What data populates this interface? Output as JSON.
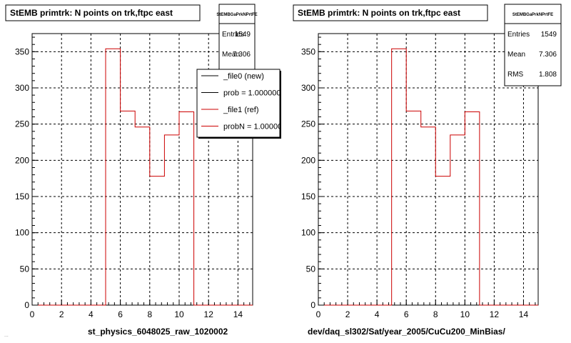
{
  "footer_text": "...",
  "colors": {
    "histogram": "#cc0000",
    "axis": "#000000",
    "grid": "#000000",
    "background": "#ffffff",
    "statsbox": "#ffffff"
  },
  "chart_data": [
    {
      "type": "bar",
      "title": "StEMB primtrk: N points on trk,ftpc east",
      "xlabel": "st_physics_6048025_raw_1020002",
      "ylabel": "",
      "xlim": [
        0,
        15
      ],
      "ylim": [
        0,
        375
      ],
      "grid": true,
      "xticks": [
        "0",
        "2",
        "4",
        "6",
        "8",
        "10",
        "12",
        "14"
      ],
      "yticks": [
        "0",
        "50",
        "100",
        "150",
        "200",
        "250",
        "300",
        "350"
      ],
      "bin_edges": [
        0,
        1,
        2,
        3,
        4,
        5,
        6,
        7,
        8,
        9,
        10,
        11,
        12,
        13,
        14,
        15
      ],
      "values": [
        0,
        0,
        0,
        0,
        0,
        354,
        268,
        246,
        178,
        235,
        267,
        0,
        0,
        0,
        0
      ],
      "stats": {
        "name": "StEMBGaPrkNPrtFE",
        "rows": [
          {
            "label": "Entries",
            "value": "1549"
          },
          {
            "label": "Mean",
            "value": "7.306"
          }
        ]
      },
      "legend": {
        "placement": "top-right",
        "entries": [
          {
            "label": "_file0 (new)",
            "color": "#000000"
          },
          {
            "label": "prob = 1.000000",
            "color": "#000000"
          },
          {
            "label": "_file1 (ref)",
            "color": "#cc0000"
          },
          {
            "label": "probN = 1.000000",
            "color": "#cc0000"
          }
        ]
      }
    },
    {
      "type": "bar",
      "title": "StEMB primtrk: N points on trk,ftpc east",
      "xlabel": "dev/daq_sl302/Sat/year_2005/CuCu200_MinBias/",
      "ylabel": "",
      "xlim": [
        0,
        15
      ],
      "ylim": [
        0,
        375
      ],
      "grid": true,
      "xticks": [
        "0",
        "2",
        "4",
        "6",
        "8",
        "10",
        "12",
        "14"
      ],
      "yticks": [
        "0",
        "50",
        "100",
        "150",
        "200",
        "250",
        "300",
        "350"
      ],
      "bin_edges": [
        0,
        1,
        2,
        3,
        4,
        5,
        6,
        7,
        8,
        9,
        10,
        11,
        12,
        13,
        14,
        15
      ],
      "values": [
        0,
        0,
        0,
        0,
        0,
        354,
        268,
        246,
        178,
        235,
        267,
        0,
        0,
        0,
        0
      ],
      "stats": {
        "name": "StEMBGaPrkNPrtFE",
        "rows": [
          {
            "label": "Entries",
            "value": "1549"
          },
          {
            "label": "Mean",
            "value": "7.306"
          },
          {
            "label": "RMS",
            "value": "1.808"
          }
        ]
      }
    }
  ]
}
